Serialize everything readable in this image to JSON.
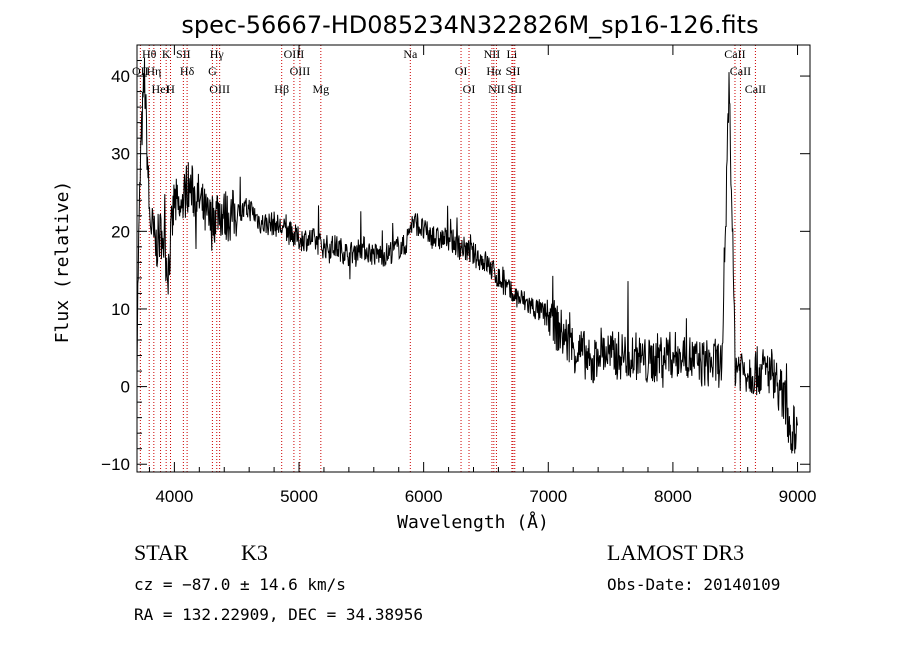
{
  "chart_data": {
    "type": "line",
    "title": "spec-56667-HD085234N322826M_sp16-126.fits",
    "xlabel": "Wavelength (Å)",
    "ylabel": "Flux (relative)",
    "xlim": [
      3700,
      9100
    ],
    "ylim": [
      -11,
      44
    ],
    "xticks": [
      4000,
      5000,
      6000,
      7000,
      8000,
      9000
    ],
    "yticks": [
      -10,
      0,
      10,
      20,
      30,
      40
    ],
    "grid": false,
    "series": [
      {
        "x": [
          3700,
          3710,
          3730,
          3760,
          3800,
          3850,
          3900,
          3950,
          4000,
          4050,
          4100,
          4150,
          4200,
          4250,
          4300,
          4350,
          4400,
          4500,
          4600,
          4700,
          4800,
          4900,
          5000,
          5100,
          5200,
          5300,
          5400,
          5500,
          5600,
          5700,
          5800,
          5850,
          5900,
          5950,
          6000,
          6100,
          6200,
          6300,
          6400,
          6500,
          6600,
          6700,
          6800,
          6900,
          7000,
          7100,
          7200,
          7300,
          7350,
          7400,
          7500,
          7600,
          7700,
          7800,
          7900,
          8000,
          8100,
          8200,
          8300,
          8400,
          8450,
          8500,
          8600,
          8700,
          8800,
          8900,
          8950,
          9000
        ],
        "y": [
          5,
          15,
          30,
          40,
          22,
          18,
          20,
          15,
          24,
          22,
          26,
          25,
          24,
          22,
          21,
          23,
          22,
          22,
          23,
          21,
          21,
          20,
          19,
          19,
          18,
          18,
          17,
          18,
          17,
          17,
          18,
          18,
          21,
          21,
          20,
          19,
          19,
          18,
          17,
          16,
          14,
          12,
          11,
          10,
          9,
          7,
          5,
          4,
          2,
          5,
          4,
          4,
          4,
          3,
          4,
          4,
          4,
          3,
          3,
          3,
          40,
          3,
          2,
          2,
          2,
          -2,
          -6,
          -5
        ]
      }
    ],
    "spectral_lines": [
      {
        "name": "Hθ",
        "x": 3798
      },
      {
        "name": "OII",
        "x": 3727
      },
      {
        "name": "HeI",
        "x": 3889
      },
      {
        "name": "K",
        "x": 3934
      },
      {
        "name": "Hη",
        "x": 3835
      },
      {
        "name": "H",
        "x": 3969
      },
      {
        "name": "SII",
        "x": 4072
      },
      {
        "name": "Hδ",
        "x": 4102
      },
      {
        "name": "OIII",
        "x": 4363
      },
      {
        "name": "Hγ",
        "x": 4340
      },
      {
        "name": "G",
        "x": 4305
      },
      {
        "name": "Hβ",
        "x": 4861
      },
      {
        "name": "OIII",
        "x": 4959
      },
      {
        "name": "OIII",
        "x": 5007
      },
      {
        "name": "Mg",
        "x": 5175
      },
      {
        "name": "Na",
        "x": 5893
      },
      {
        "name": "OI",
        "x": 6300
      },
      {
        "name": "OI",
        "x": 6364
      },
      {
        "name": "NII",
        "x": 6548
      },
      {
        "name": "Hα",
        "x": 6563
      },
      {
        "name": "NII",
        "x": 6584
      },
      {
        "name": "Li",
        "x": 6708
      },
      {
        "name": "SII",
        "x": 6717
      },
      {
        "name": "SII",
        "x": 6731
      },
      {
        "name": "CaII",
        "x": 8498
      },
      {
        "name": "CaII",
        "x": 8542
      },
      {
        "name": "CaII",
        "x": 8662
      }
    ]
  },
  "info": {
    "class": "STAR",
    "subclass": "K3",
    "survey": "LAMOST DR3",
    "cz": "cz = −87.0 ± 14.6 km/s",
    "obsdate": "Obs-Date: 20140109",
    "radec": "RA = 132.22909, DEC =  34.38956"
  },
  "colors": {
    "line": "#000000",
    "marker": "#cc0000"
  }
}
